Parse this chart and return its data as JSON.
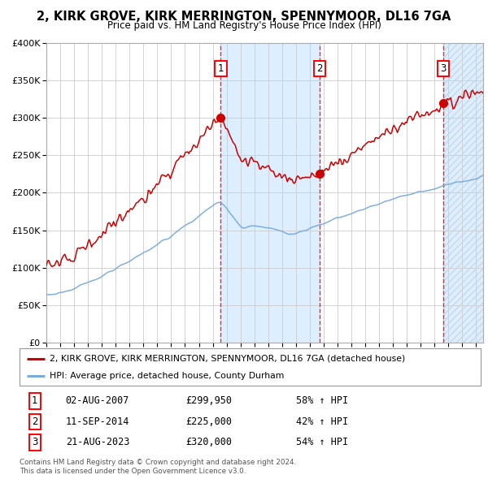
{
  "title": "2, KIRK GROVE, KIRK MERRINGTON, SPENNYMOOR, DL16 7GA",
  "subtitle": "Price paid vs. HM Land Registry's House Price Index (HPI)",
  "ylim": [
    0,
    400000
  ],
  "yticks": [
    0,
    50000,
    100000,
    150000,
    200000,
    250000,
    300000,
    350000,
    400000
  ],
  "xlim_start": 1995.0,
  "xlim_end": 2026.5,
  "sale1_date": 2007.58,
  "sale1_price": 299950,
  "sale1_label": "1",
  "sale1_text": "02-AUG-2007",
  "sale1_price_str": "£299,950",
  "sale1_hpi": "58% ↑ HPI",
  "sale2_date": 2014.7,
  "sale2_price": 225000,
  "sale2_label": "2",
  "sale2_text": "11-SEP-2014",
  "sale2_price_str": "£225,000",
  "sale2_hpi": "42% ↑ HPI",
  "sale3_date": 2023.63,
  "sale3_price": 320000,
  "sale3_label": "3",
  "sale3_text": "21-AUG-2023",
  "sale3_price_str": "£320,000",
  "sale3_hpi": "54% ↑ HPI",
  "hpi_color": "#7aabdd",
  "price_color": "#cc0000",
  "bg_color": "#ffffff",
  "plot_bg": "#ffffff",
  "shade_color": "#ddeeff",
  "hatch_color": "#c8d8e8",
  "grid_color": "#cccccc",
  "legend_line1": "2, KIRK GROVE, KIRK MERRINGTON, SPENNYMOOR, DL16 7GA (detached house)",
  "legend_line2": "HPI: Average price, detached house, County Durham",
  "footer": "Contains HM Land Registry data © Crown copyright and database right 2024.\nThis data is licensed under the Open Government Licence v3.0."
}
